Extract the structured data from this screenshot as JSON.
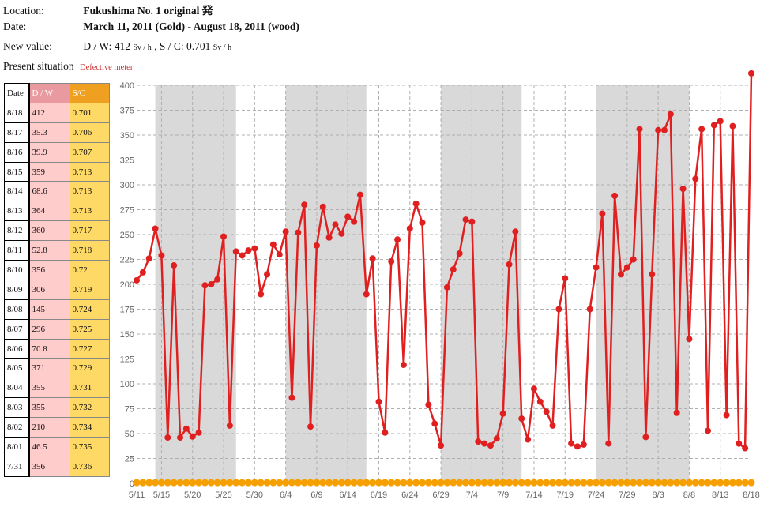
{
  "info": {
    "location_label": "Location:",
    "location_value": "Fukushima No. 1 original 発",
    "date_label": "Date:",
    "date_value": "March 11, 2011 (Gold) - August 18, 2011 (wood)",
    "new_value_label": "New value:",
    "new_value_dw_prefix": "D / W: 412",
    "new_value_unit1": "Sv / h",
    "new_value_sc_prefix": ", S / C: 0.701",
    "new_value_unit2": "Sv / h",
    "present_label": "Present situation",
    "present_value": "Defective meter"
  },
  "table": {
    "headers": [
      "Date",
      "D / W",
      "S/C"
    ],
    "rows": [
      [
        "8/18",
        "412",
        "0.701"
      ],
      [
        "8/17",
        "35.3",
        "0.706"
      ],
      [
        "8/16",
        "39.9",
        "0.707"
      ],
      [
        "8/15",
        "359",
        "0.713"
      ],
      [
        "8/14",
        "68.6",
        "0.713"
      ],
      [
        "8/13",
        "364",
        "0.713"
      ],
      [
        "8/12",
        "360",
        "0.717"
      ],
      [
        "8/11",
        "52.8",
        "0.718"
      ],
      [
        "8/10",
        "356",
        "0.72"
      ],
      [
        "8/09",
        "306",
        "0.719"
      ],
      [
        "8/08",
        "145",
        "0.724"
      ],
      [
        "8/07",
        "296",
        "0.725"
      ],
      [
        "8/06",
        "70.8",
        "0.727"
      ],
      [
        "8/05",
        "371",
        "0.729"
      ],
      [
        "8/04",
        "355",
        "0.731"
      ],
      [
        "8/03",
        "355",
        "0.732"
      ],
      [
        "8/02",
        "210",
        "0.734"
      ],
      [
        "8/01",
        "46.5",
        "0.735"
      ],
      [
        "7/31",
        "356",
        "0.736"
      ]
    ]
  },
  "chart_data": {
    "type": "line",
    "title": "",
    "xlabel": "",
    "ylabel": "",
    "ylim": [
      0,
      400
    ],
    "yticks": [
      0,
      25,
      50,
      75,
      100,
      125,
      150,
      175,
      200,
      225,
      250,
      275,
      300,
      325,
      350,
      375,
      400
    ],
    "x_start": "2011-05-11",
    "x_end": "2011-08-18",
    "xtick_labels": [
      "5/11",
      "5/15",
      "5/20",
      "5/25",
      "5/30",
      "6/4",
      "6/9",
      "6/14",
      "6/19",
      "6/24",
      "6/29",
      "7/4",
      "7/9",
      "7/14",
      "7/19",
      "7/24",
      "7/29",
      "8/3",
      "8/8",
      "8/13",
      "8/18"
    ],
    "xtick_dates": [
      "2011-05-11",
      "2011-05-15",
      "2011-05-20",
      "2011-05-25",
      "2011-05-30",
      "2011-06-04",
      "2011-06-09",
      "2011-06-14",
      "2011-06-19",
      "2011-06-24",
      "2011-06-29",
      "2011-07-04",
      "2011-07-09",
      "2011-07-14",
      "2011-07-19",
      "2011-07-24",
      "2011-07-29",
      "2011-08-03",
      "2011-08-08",
      "2011-08-13",
      "2011-08-18"
    ],
    "shaded_ranges": [
      [
        "2011-05-14",
        "2011-05-27"
      ],
      [
        "2011-06-04",
        "2011-06-17"
      ],
      [
        "2011-06-29",
        "2011-07-12"
      ],
      [
        "2011-07-24",
        "2011-08-08"
      ]
    ],
    "grid": true,
    "series": [
      {
        "name": "D / W",
        "color": "#e02020",
        "x": [
          "2011-05-11",
          "2011-05-12",
          "2011-05-13",
          "2011-05-14",
          "2011-05-15",
          "2011-05-16",
          "2011-05-17",
          "2011-05-18",
          "2011-05-19",
          "2011-05-20",
          "2011-05-21",
          "2011-05-22",
          "2011-05-23",
          "2011-05-24",
          "2011-05-25",
          "2011-05-26",
          "2011-05-27",
          "2011-05-28",
          "2011-05-29",
          "2011-05-30",
          "2011-05-31",
          "2011-06-01",
          "2011-06-02",
          "2011-06-03",
          "2011-06-04",
          "2011-06-05",
          "2011-06-06",
          "2011-06-07",
          "2011-06-08",
          "2011-06-09",
          "2011-06-10",
          "2011-06-11",
          "2011-06-12",
          "2011-06-13",
          "2011-06-14",
          "2011-06-15",
          "2011-06-16",
          "2011-06-17",
          "2011-06-18",
          "2011-06-19",
          "2011-06-20",
          "2011-06-21",
          "2011-06-22",
          "2011-06-23",
          "2011-06-24",
          "2011-06-25",
          "2011-06-26",
          "2011-06-27",
          "2011-06-28",
          "2011-06-29",
          "2011-06-30",
          "2011-07-01",
          "2011-07-02",
          "2011-07-03",
          "2011-07-04",
          "2011-07-05",
          "2011-07-06",
          "2011-07-07",
          "2011-07-08",
          "2011-07-09",
          "2011-07-10",
          "2011-07-11",
          "2011-07-12",
          "2011-07-13",
          "2011-07-14",
          "2011-07-15",
          "2011-07-16",
          "2011-07-17",
          "2011-07-18",
          "2011-07-19",
          "2011-07-20",
          "2011-07-21",
          "2011-07-22",
          "2011-07-23",
          "2011-07-24",
          "2011-07-25",
          "2011-07-26",
          "2011-07-27",
          "2011-07-28",
          "2011-07-29",
          "2011-07-30",
          "2011-07-31",
          "2011-08-01",
          "2011-08-02",
          "2011-08-03",
          "2011-08-04",
          "2011-08-05",
          "2011-08-06",
          "2011-08-07",
          "2011-08-08",
          "2011-08-09",
          "2011-08-10",
          "2011-08-11",
          "2011-08-12",
          "2011-08-13",
          "2011-08-14",
          "2011-08-15",
          "2011-08-16",
          "2011-08-17",
          "2011-08-18"
        ],
        "values": [
          204,
          212,
          226,
          256,
          229,
          46,
          219,
          46,
          55,
          47,
          51,
          199,
          200,
          205,
          248,
          58,
          233,
          229,
          234,
          236,
          190,
          210,
          240,
          230,
          253,
          86,
          252,
          280,
          57,
          239,
          278,
          247,
          260,
          251,
          268,
          263,
          290,
          190,
          226,
          82,
          51,
          223,
          245,
          119,
          256,
          281,
          262,
          79,
          60,
          38,
          197,
          215,
          231,
          265,
          263,
          42,
          40,
          38,
          45,
          70,
          220,
          253,
          65,
          44,
          95,
          82,
          72,
          58,
          175,
          206,
          40,
          37,
          39,
          175,
          217,
          271,
          40,
          289,
          210,
          217,
          225,
          356,
          46.5,
          210,
          355,
          355,
          371,
          70.8,
          296,
          145,
          306,
          356,
          52.8,
          360,
          364,
          68.6,
          359,
          39.9,
          35.3,
          412
        ]
      },
      {
        "name": "S/C",
        "color": "#f5a000",
        "value": 0.7
      }
    ]
  }
}
